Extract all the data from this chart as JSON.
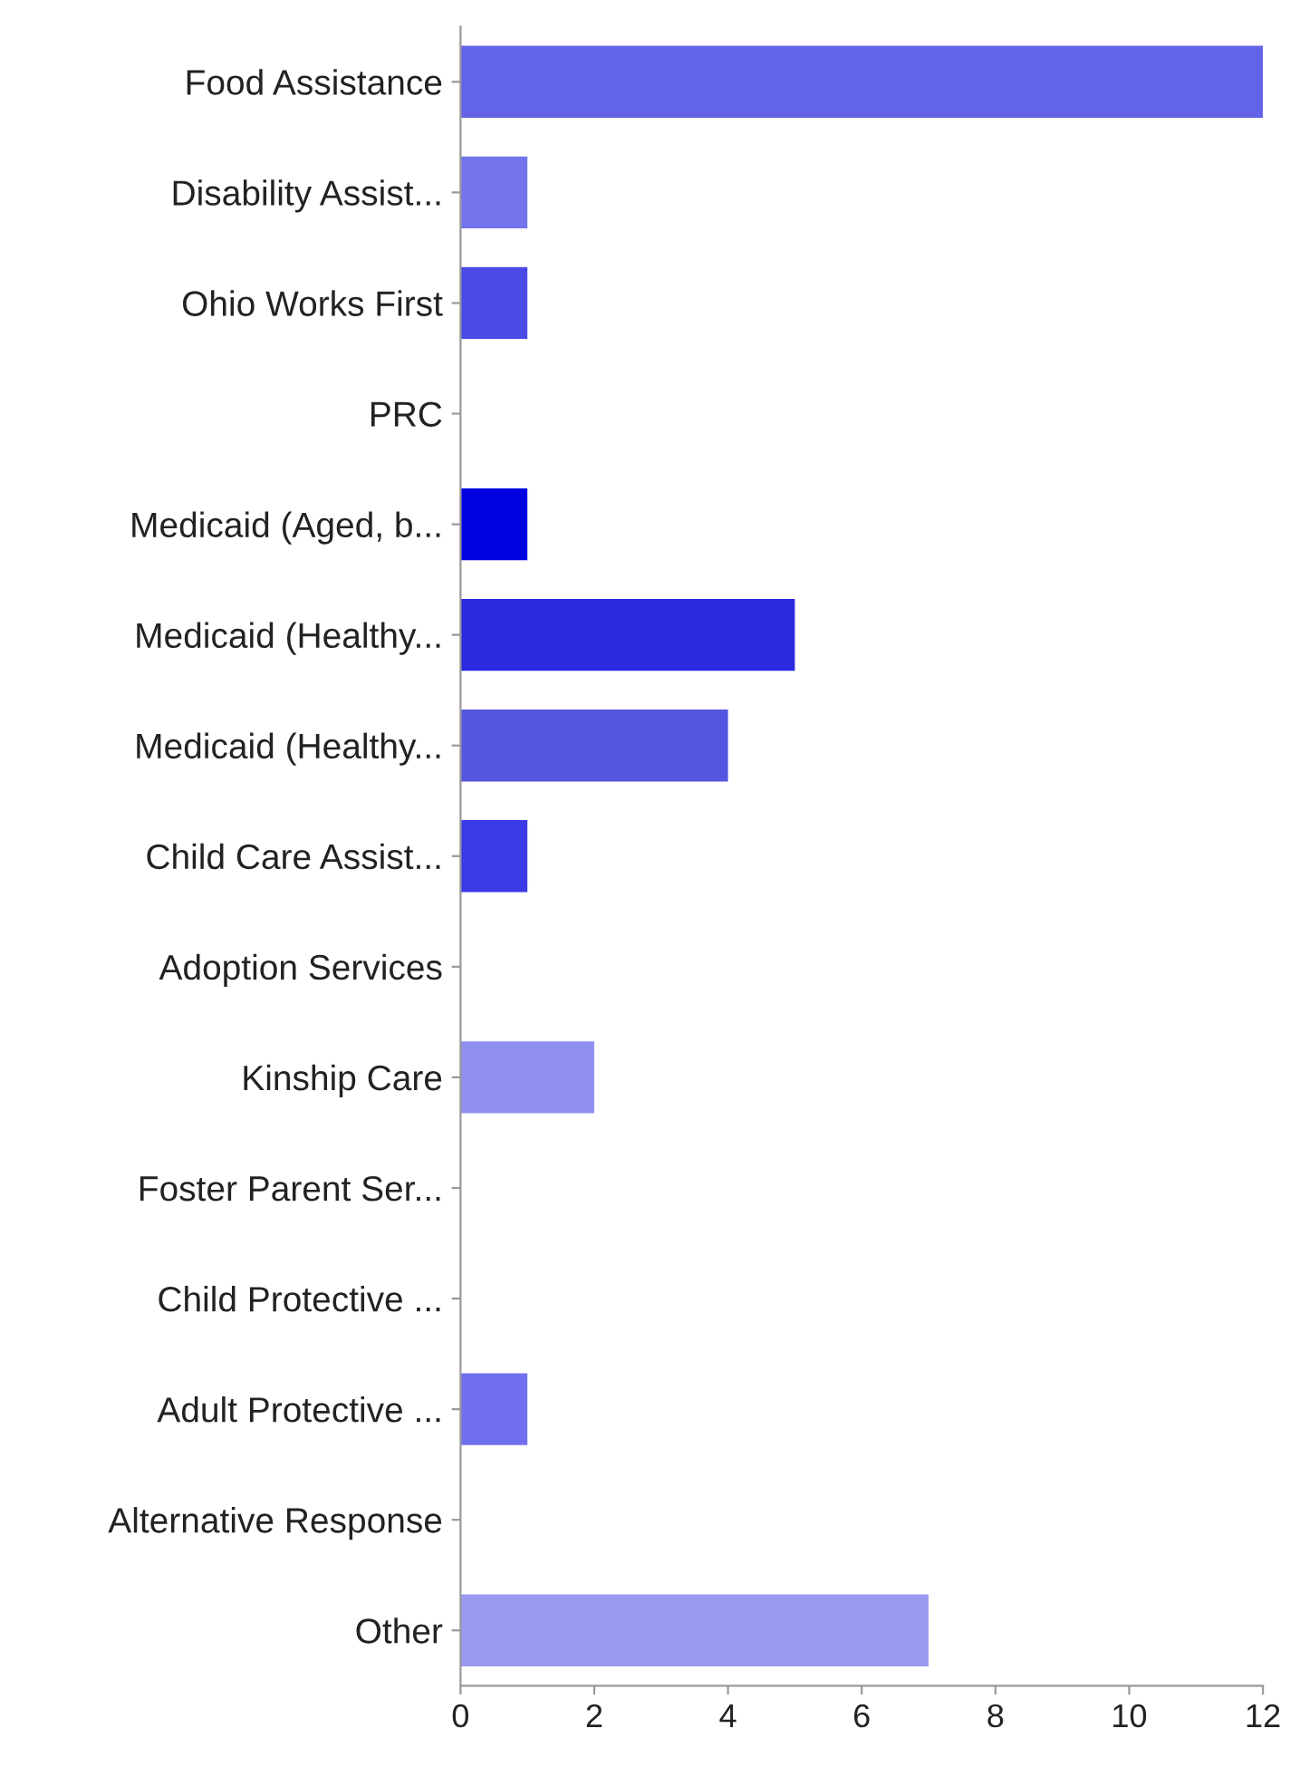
{
  "chart_data": {
    "type": "bar",
    "orientation": "horizontal",
    "categories": [
      "Food Assistance",
      "Disability Assist...",
      "Ohio Works First",
      "PRC",
      "Medicaid (Aged, b...",
      "Medicaid (Healthy...",
      "Medicaid (Healthy...",
      "Child Care Assist...",
      "Adoption Services",
      "Kinship Care",
      "Foster Parent Ser...",
      "Child Protective ...",
      "Adult Protective ...",
      "Alternative Response",
      "Other"
    ],
    "values": [
      12,
      1,
      1,
      0,
      1,
      5,
      4,
      1,
      0,
      2,
      0,
      0,
      1,
      0,
      7
    ],
    "colors": [
      "#6363e8",
      "#7474ec",
      "#4a4ae6",
      "#8080ee",
      "#0000e0",
      "#2a2ae0",
      "#5555e0",
      "#3a3ae6",
      "#8080ee",
      "#9090f0",
      "#8080ee",
      "#8080ee",
      "#7070ee",
      "#8080ee",
      "#9a9af0"
    ],
    "xlim": [
      0,
      12
    ],
    "xticks": [
      0,
      2,
      4,
      6,
      8,
      10,
      12
    ],
    "grid": false,
    "legend": false
  }
}
